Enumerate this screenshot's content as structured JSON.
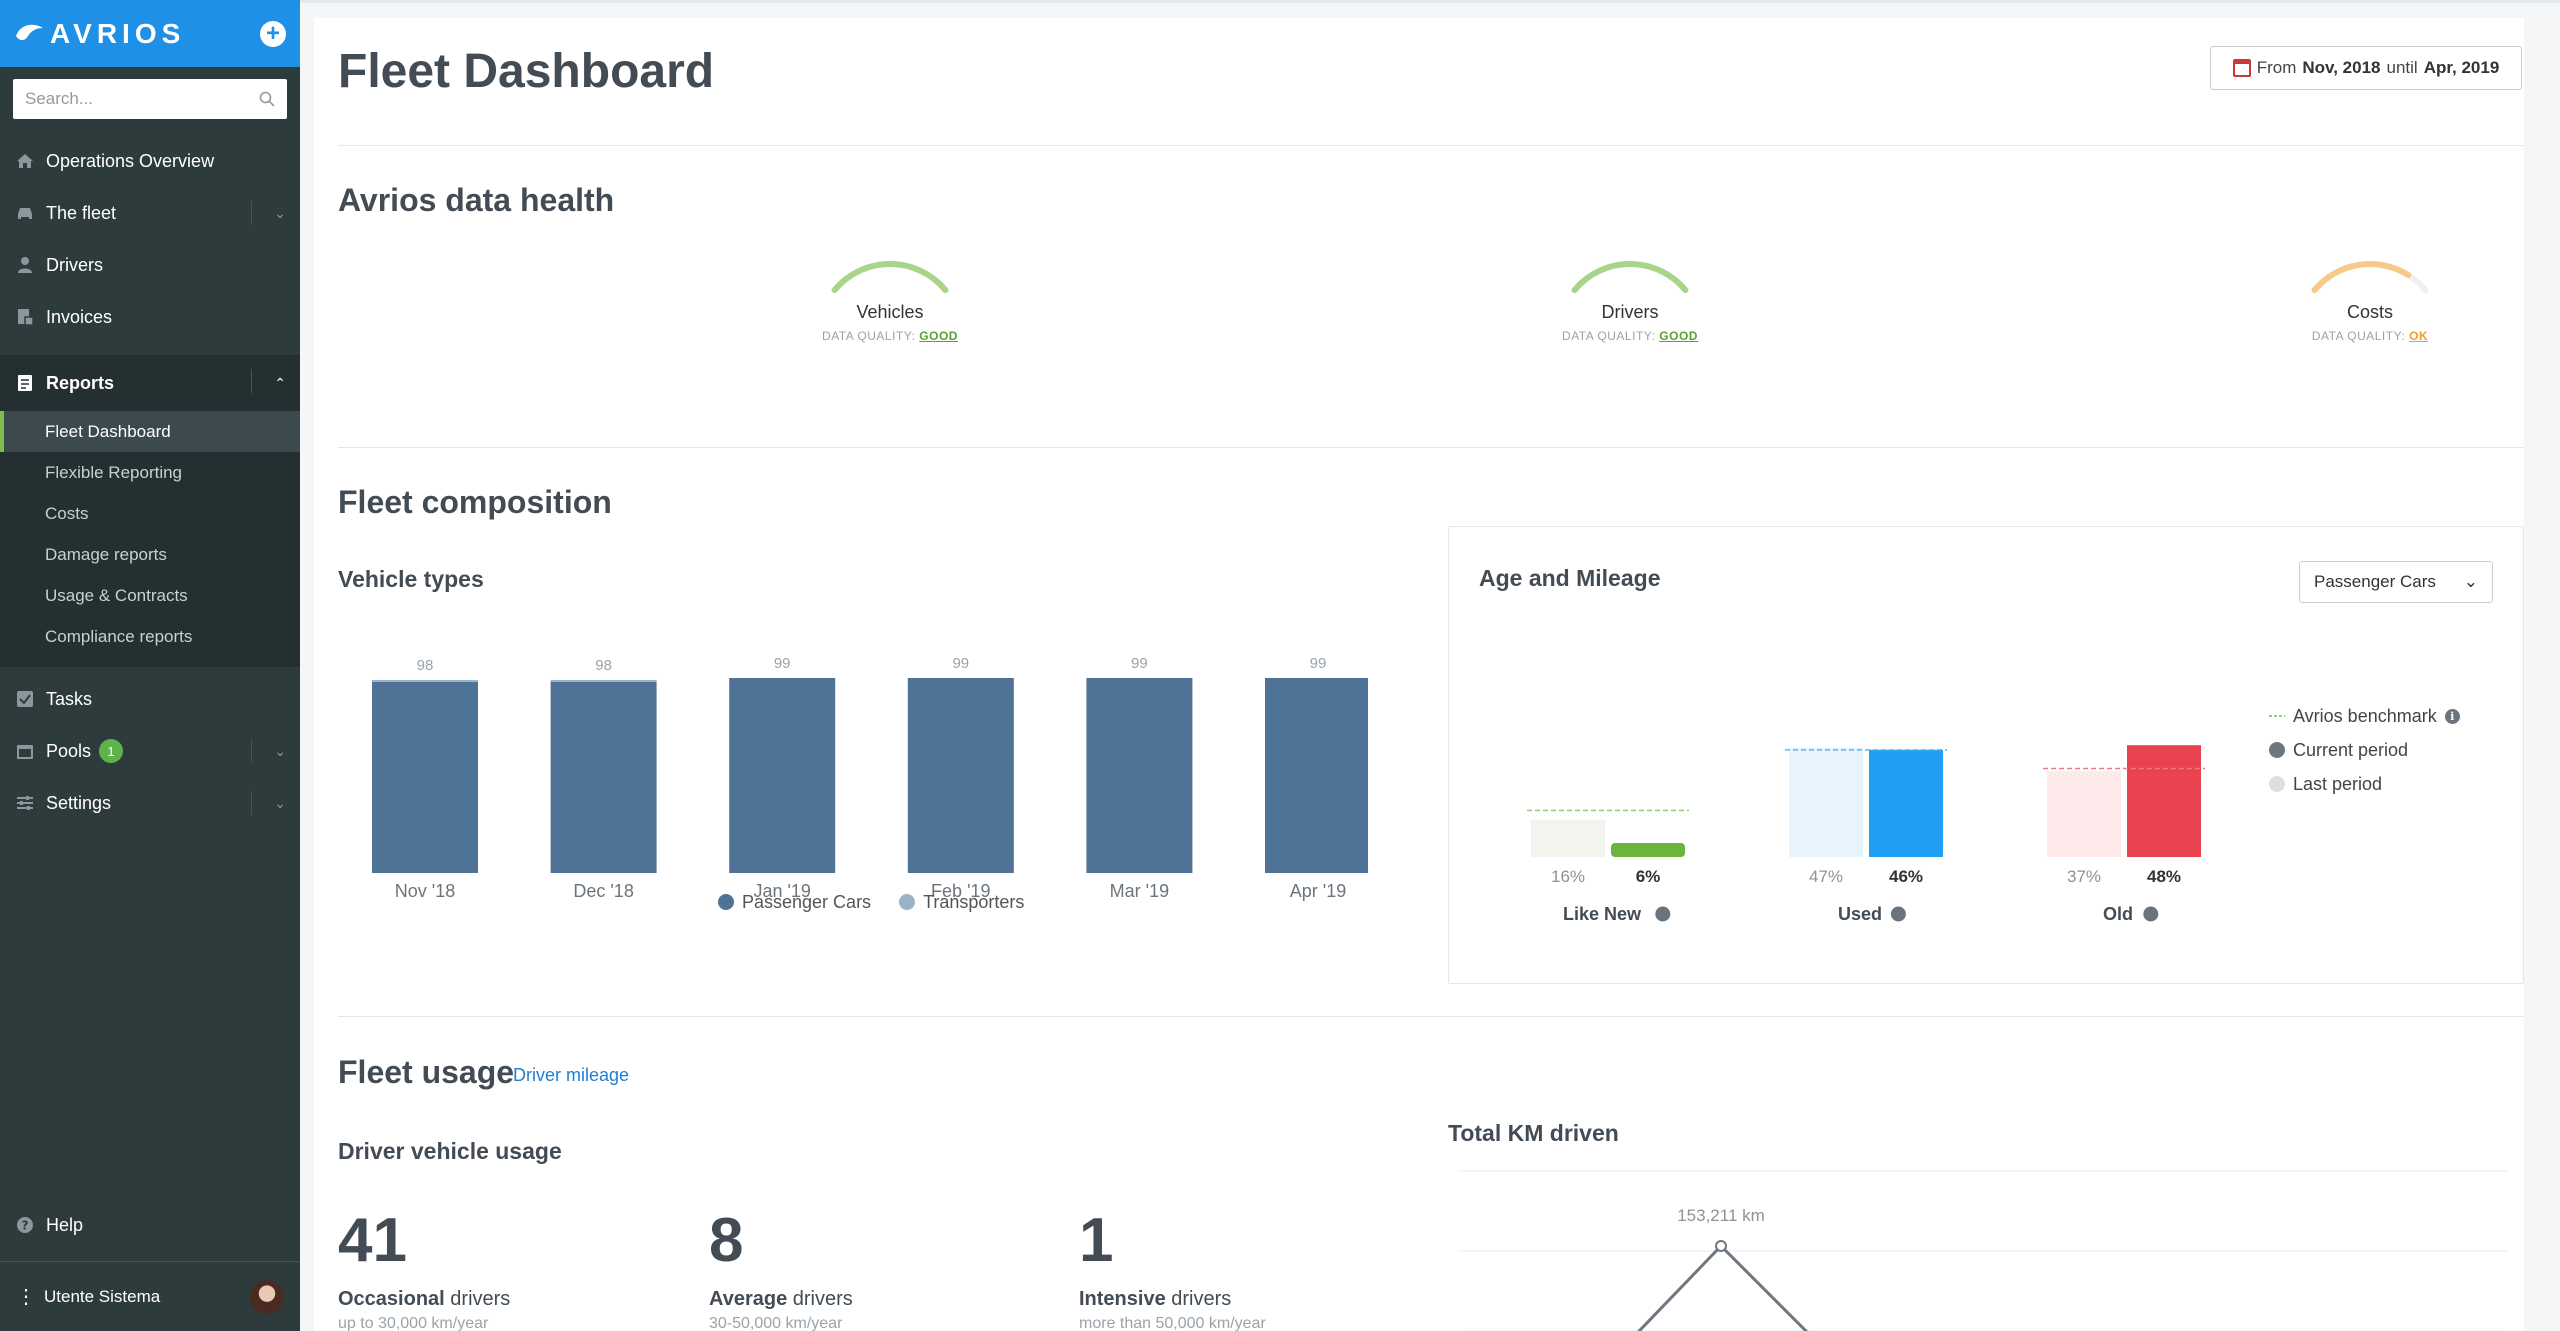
{
  "app": {
    "logo_text": "AVRIOS"
  },
  "search": {
    "placeholder": "Search..."
  },
  "sidebar": {
    "items": [
      {
        "label": "Operations Overview",
        "icon": "home-icon"
      },
      {
        "label": "The fleet",
        "icon": "car-icon",
        "expandable": true
      },
      {
        "label": "Drivers",
        "icon": "person-icon"
      },
      {
        "label": "Invoices",
        "icon": "invoice-icon"
      }
    ],
    "reports": {
      "label": "Reports",
      "sub_items": [
        "Fleet Dashboard",
        "Flexible Reporting",
        "Costs",
        "Damage reports",
        "Usage & Contracts",
        "Compliance reports"
      ],
      "active": "Fleet Dashboard"
    },
    "lower_items": [
      {
        "label": "Tasks",
        "icon": "checkbox-icon"
      },
      {
        "label": "Pools",
        "icon": "calendar-icon",
        "badge": "1",
        "expandable": true
      },
      {
        "label": "Settings",
        "icon": "sliders-icon",
        "expandable": true
      }
    ],
    "help": "Help",
    "user": "Utente Sistema"
  },
  "header": {
    "title": "Fleet Dashboard",
    "date_prefix": "From",
    "date_from": "Nov, 2018",
    "date_mid": "until",
    "date_to": "Apr, 2019"
  },
  "data_health": {
    "title": "Avrios data health",
    "quality_prefix": "DATA QUALITY:",
    "gauges": [
      {
        "label": "Vehicles",
        "quality": "GOOD",
        "color": "#a8d58a",
        "text_color": "#5aa12f",
        "fill": 1.0
      },
      {
        "label": "Drivers",
        "quality": "GOOD",
        "color": "#a8d58a",
        "text_color": "#5aa12f",
        "fill": 1.0
      },
      {
        "label": "Costs",
        "quality": "OK",
        "color": "#f9c98a",
        "text_color": "#f29b2e",
        "fill": 0.82
      }
    ]
  },
  "fleet_composition": {
    "title": "Fleet composition",
    "vehicle_types": {
      "title": "Vehicle types",
      "legend": [
        {
          "name": "Passenger Cars",
          "color": "#4f7396"
        },
        {
          "name": "Transporters",
          "color": "#9bb2c6"
        }
      ]
    },
    "age_mileage": {
      "title": "Age and Mileage",
      "select_value": "Passenger Cars",
      "legend": [
        "Avrios benchmark",
        "Current period",
        "Last period"
      ],
      "groups": [
        {
          "name": "Like New",
          "last": "16%",
          "current": "6%"
        },
        {
          "name": "Used",
          "last": "47%",
          "current": "46%"
        },
        {
          "name": "Old",
          "last": "37%",
          "current": "48%"
        }
      ]
    }
  },
  "chart_data": [
    {
      "type": "bar",
      "title": "Vehicle types",
      "categories": [
        "Nov '18",
        "Dec '18",
        "Jan '19",
        "Feb '19",
        "Mar '19",
        "Apr '19"
      ],
      "series": [
        {
          "name": "Passenger Cars",
          "values": [
            97,
            97,
            99,
            99,
            99,
            99
          ]
        },
        {
          "name": "Transporters",
          "values": [
            1,
            1,
            0,
            0,
            0,
            0
          ]
        }
      ],
      "totals": [
        "98",
        "98",
        "99",
        "99",
        "99",
        "99"
      ],
      "stacked": true,
      "legend": "bottom"
    },
    {
      "type": "bar",
      "title": "Age and Mileage",
      "categories": [
        "Like New",
        "Used",
        "Old"
      ],
      "series": [
        {
          "name": "Last period",
          "values": [
            16,
            47,
            37
          ]
        },
        {
          "name": "Current period",
          "values": [
            6,
            46,
            48
          ]
        },
        {
          "name": "Avrios benchmark",
          "values": [
            20,
            46,
            38
          ]
        }
      ],
      "colors": {
        "like_new": "#6db33f",
        "used": "#1f9ef2",
        "old": "#e8434e"
      },
      "legend": "right"
    },
    {
      "type": "line",
      "title": "Total KM driven",
      "series": [
        {
          "values": [
            0,
            153211,
            0
          ]
        }
      ],
      "annotations": [
        "153,211 km"
      ]
    }
  ],
  "fleet_usage": {
    "title": "Fleet usage",
    "link": "Driver mileage",
    "driver_usage_title": "Driver vehicle usage",
    "stats": [
      {
        "value": "41",
        "bold": "Occasional",
        "rest": "drivers",
        "sub": "up to 30,000 km/year"
      },
      {
        "value": "8",
        "bold": "Average",
        "rest": "drivers",
        "sub": "30-50,000 km/year"
      },
      {
        "value": "1",
        "bold": "Intensive",
        "rest": "drivers",
        "sub": "more than 50,000 km/year"
      }
    ],
    "total_km_title": "Total KM driven"
  }
}
